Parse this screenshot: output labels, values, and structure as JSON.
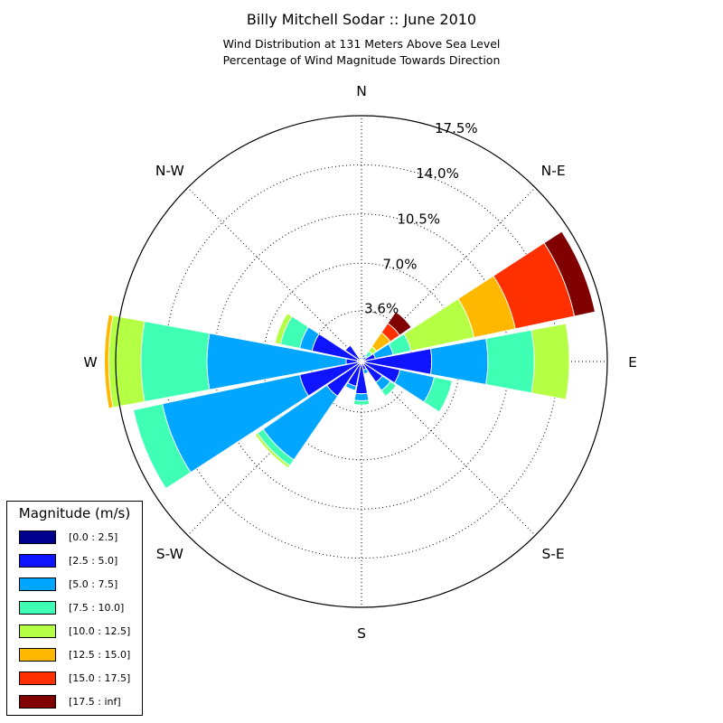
{
  "title": "Billy Mitchell Sodar :: June 2010",
  "subtitle_line1": "Wind Distribution at 131 Meters Above Sea Level",
  "subtitle_line2": "Percentage of Wind Magnitude Towards Direction",
  "chart_data": {
    "type": "windrose",
    "directions": [
      "N",
      "NNE",
      "NE",
      "ENE",
      "E",
      "ESE",
      "SE",
      "SSE",
      "S",
      "SSW",
      "SW",
      "WSW",
      "W",
      "WNW",
      "NW",
      "NNW"
    ],
    "direction_labels": [
      "N",
      "N-E",
      "E",
      "S-E",
      "S",
      "S-W",
      "W",
      "N-W"
    ],
    "r_ticks": [
      "3.6%",
      "7.0%",
      "10.5%",
      "14.0%",
      "17.5%"
    ],
    "r_tick_values": [
      3.6,
      7.0,
      10.5,
      14.0,
      17.5
    ],
    "r_max": 17.5,
    "grid": true,
    "legend_position": "lower-left",
    "legend": {
      "title": "Magnitude (m/s)",
      "bins": [
        {
          "label": "[0.0 : 2.5]",
          "color": "#00008f"
        },
        {
          "label": "[2.5 : 5.0]",
          "color": "#0f14ff"
        },
        {
          "label": "[5.0 : 7.5]",
          "color": "#00a6ff"
        },
        {
          "label": "[7.5 : 10.0]",
          "color": "#3fffb4"
        },
        {
          "label": "[10.0 : 12.5]",
          "color": "#b5ff45"
        },
        {
          "label": "[12.5 : 15.0]",
          "color": "#ffb800"
        },
        {
          "label": "[15.0 : 17.5]",
          "color": "#ff3000"
        },
        {
          "label": "[17.5 : inf]",
          "color": "#800000"
        }
      ]
    },
    "series": [
      {
        "direction": "N",
        "cumulative": [
          0.2,
          0.3
        ]
      },
      {
        "direction": "NNE",
        "cumulative": [
          0.1,
          0.3,
          0.5
        ]
      },
      {
        "direction": "NE",
        "cumulative": [
          0.1,
          0.4,
          0.5,
          0.9,
          1.3,
          2.5,
          3.3,
          4.3
        ]
      },
      {
        "direction": "ENE",
        "cumulative": [
          0.2,
          1.0,
          2.3,
          3.6,
          8.2,
          11.2,
          15.5,
          17.0
        ]
      },
      {
        "direction": "E",
        "cumulative": [
          0.3,
          5.0,
          9.0,
          12.3,
          14.8
        ]
      },
      {
        "direction": "ESE",
        "cumulative": [
          0.2,
          2.8,
          5.3,
          6.6
        ]
      },
      {
        "direction": "SE",
        "cumulative": [
          0.2,
          1.8,
          2.5,
          3.0
        ]
      },
      {
        "direction": "SSE",
        "cumulative": [
          0.1,
          0.6,
          0.9
        ]
      },
      {
        "direction": "S",
        "cumulative": [
          0.1,
          2.3,
          2.8,
          3.1
        ]
      },
      {
        "direction": "SSW",
        "cumulative": [
          0.1,
          1.8,
          2.1
        ]
      },
      {
        "direction": "SW",
        "cumulative": [
          0.1,
          3.0,
          8.5,
          9.0,
          9.2
        ]
      },
      {
        "direction": "WSW",
        "cumulative": [
          0.2,
          4.5,
          14.5,
          16.6
        ]
      },
      {
        "direction": "W",
        "cumulative": [
          0.3,
          1.1,
          11.0,
          15.7,
          18.0,
          18.3
        ]
      },
      {
        "direction": "WNW",
        "cumulative": [
          0.3,
          3.6,
          4.5,
          5.9,
          6.3
        ]
      },
      {
        "direction": "NW",
        "cumulative": [
          0.2,
          1.4
        ]
      },
      {
        "direction": "NNW",
        "cumulative": [
          0.1,
          0.3
        ]
      }
    ]
  }
}
